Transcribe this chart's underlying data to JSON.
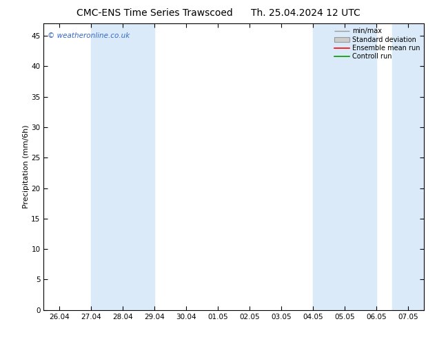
{
  "title": "CMC-ENS Time Series Trawscoed      Th. 25.04.2024 12 UTC",
  "ylabel": "Precipitation (mm/6h)",
  "watermark": "© weatheronline.co.uk",
  "ylim": [
    0,
    47
  ],
  "yticks": [
    0,
    5,
    10,
    15,
    20,
    25,
    30,
    35,
    40,
    45
  ],
  "x_labels": [
    "26.04",
    "27.04",
    "28.04",
    "29.04",
    "30.04",
    "01.05",
    "02.05",
    "03.05",
    "04.05",
    "05.05",
    "06.05",
    "07.05"
  ],
  "x_values": [
    0,
    1,
    2,
    3,
    4,
    5,
    6,
    7,
    8,
    9,
    10,
    11
  ],
  "xlim": [
    -0.5,
    11.5
  ],
  "shade_bands": [
    {
      "x_start": 1.0,
      "x_end": 3.0
    },
    {
      "x_start": 8.0,
      "x_end": 10.0
    },
    {
      "x_start": 10.5,
      "x_end": 11.5
    }
  ],
  "shade_color": "#daeaf8",
  "bg_color": "#ffffff",
  "border_color": "#000000",
  "legend_items": [
    {
      "label": "min/max",
      "color": "#888888",
      "type": "minmax"
    },
    {
      "label": "Standard deviation",
      "color": "#cccccc",
      "type": "fill"
    },
    {
      "label": "Ensemble mean run",
      "color": "#ff0000",
      "type": "line"
    },
    {
      "label": "Controll run",
      "color": "#009900",
      "type": "line"
    }
  ],
  "title_fontsize": 10,
  "tick_fontsize": 7.5,
  "label_fontsize": 8
}
